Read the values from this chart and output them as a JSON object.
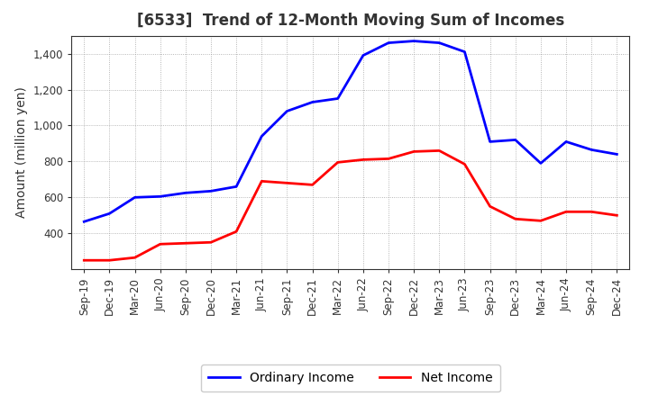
{
  "title": "[6533]  Trend of 12-Month Moving Sum of Incomes",
  "ylabel": "Amount (million yen)",
  "background_color": "#ffffff",
  "plot_bg_color": "#ffffff",
  "grid_color": "#999999",
  "x_labels": [
    "Sep-19",
    "Dec-19",
    "Mar-20",
    "Jun-20",
    "Sep-20",
    "Dec-20",
    "Mar-21",
    "Jun-21",
    "Sep-21",
    "Dec-21",
    "Mar-22",
    "Jun-22",
    "Sep-22",
    "Dec-22",
    "Mar-23",
    "Jun-23",
    "Sep-23",
    "Dec-23",
    "Mar-24",
    "Jun-24",
    "Sep-24",
    "Dec-24"
  ],
  "ordinary_income": [
    465,
    510,
    600,
    605,
    625,
    635,
    660,
    940,
    1080,
    1130,
    1150,
    1390,
    1460,
    1470,
    1460,
    1410,
    910,
    920,
    790,
    910,
    865,
    840
  ],
  "net_income": [
    250,
    250,
    265,
    340,
    345,
    350,
    410,
    690,
    680,
    670,
    795,
    810,
    815,
    855,
    860,
    785,
    550,
    480,
    470,
    520,
    520,
    500
  ],
  "ordinary_income_color": "#0000ff",
  "net_income_color": "#ff0000",
  "ylim_min": 200,
  "ylim_max": 1500,
  "yticks": [
    400,
    600,
    800,
    1000,
    1200,
    1400
  ],
  "ytick_labels": [
    "400",
    "600",
    "800",
    "1,000",
    "1,200",
    "1,400"
  ],
  "legend_ordinary": "Ordinary Income",
  "legend_net": "Net Income",
  "title_fontsize": 12,
  "label_fontsize": 10,
  "tick_fontsize": 8.5,
  "legend_fontsize": 10,
  "line_width": 2.0
}
